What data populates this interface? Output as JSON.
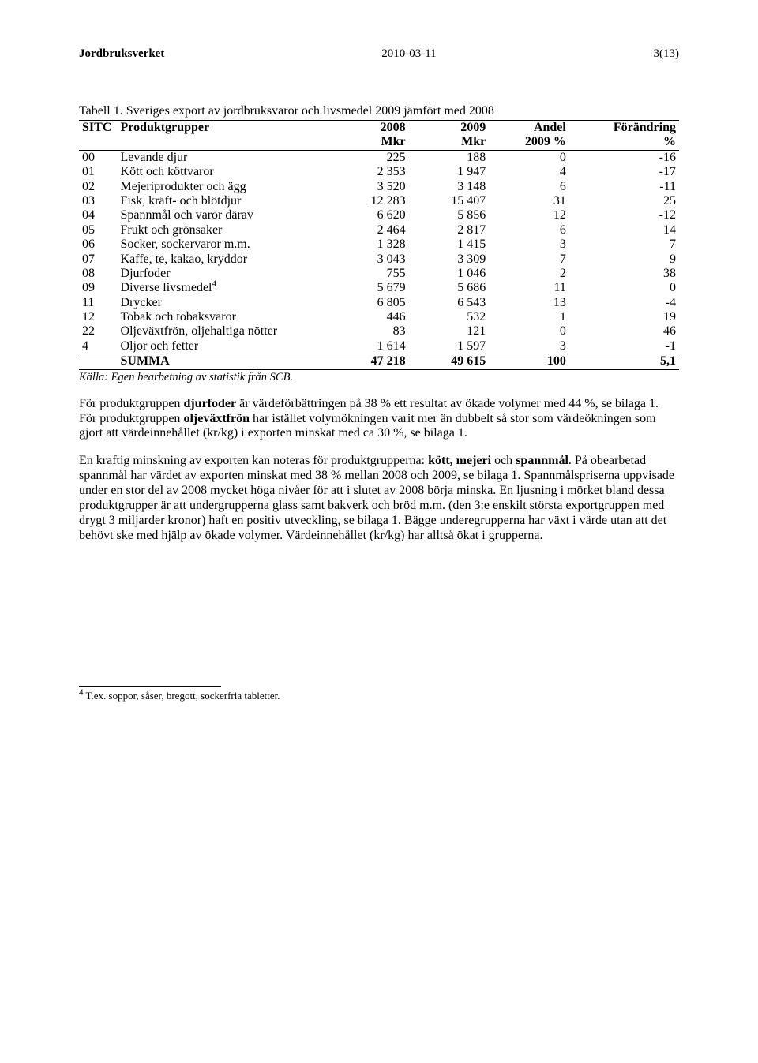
{
  "header": {
    "left": "Jordbruksverket",
    "center": "2010-03-11",
    "right": "3(13)"
  },
  "table": {
    "title": "Tabell 1. Sveriges export av jordbruksvaror och livsmedel 2009 jämfört med 2008",
    "head1": {
      "sitc": "SITC",
      "name": "Produktgrupper",
      "c1": "2008",
      "c2": "2009",
      "c3": "Andel",
      "c4": "Förändring"
    },
    "head2": {
      "c1": "Mkr",
      "c2": "Mkr",
      "c3": "2009 %",
      "c4": "%"
    },
    "rows": [
      {
        "sitc": "00",
        "name": "Levande djur",
        "v1": "225",
        "v2": "188",
        "v3": "0",
        "v4": "-16"
      },
      {
        "sitc": "01",
        "name": "Kött och köttvaror",
        "v1": "2 353",
        "v2": "1 947",
        "v3": "4",
        "v4": "-17"
      },
      {
        "sitc": "02",
        "name": "Mejeriprodukter och ägg",
        "v1": "3 520",
        "v2": "3 148",
        "v3": "6",
        "v4": "-11"
      },
      {
        "sitc": "03",
        "name": "Fisk, kräft- och blötdjur",
        "v1": "12 283",
        "v2": "15 407",
        "v3": "31",
        "v4": "25"
      },
      {
        "sitc": "04",
        "name": "Spannmål och varor därav",
        "v1": "6 620",
        "v2": "5 856",
        "v3": "12",
        "v4": "-12"
      },
      {
        "sitc": "05",
        "name": "Frukt och grönsaker",
        "v1": "2 464",
        "v2": "2 817",
        "v3": "6",
        "v4": "14"
      },
      {
        "sitc": "06",
        "name": "Socker, sockervaror m.m.",
        "v1": "1 328",
        "v2": "1 415",
        "v3": "3",
        "v4": "7"
      },
      {
        "sitc": "07",
        "name": "Kaffe, te, kakao, kryddor",
        "v1": "3 043",
        "v2": "3 309",
        "v3": "7",
        "v4": "9"
      },
      {
        "sitc": "08",
        "name": "Djurfoder",
        "v1": "755",
        "v2": "1 046",
        "v3": "2",
        "v4": "38"
      },
      {
        "sitc": "09",
        "name": "Diverse livsmedel",
        "sup": "4",
        "v1": "5 679",
        "v2": "5 686",
        "v3": "11",
        "v4": "0"
      },
      {
        "sitc": "11",
        "name": "Drycker",
        "v1": "6 805",
        "v2": "6 543",
        "v3": "13",
        "v4": "-4"
      },
      {
        "sitc": "12",
        "name": "Tobak och tobaksvaror",
        "v1": "446",
        "v2": "532",
        "v3": "1",
        "v4": "19"
      },
      {
        "sitc": "22",
        "name": "Oljeväxtfrön, oljehaltiga nötter",
        "v1": "83",
        "v2": "121",
        "v3": "0",
        "v4": "46"
      },
      {
        "sitc": "4",
        "name": "Oljor och fetter",
        "v1": "1 614",
        "v2": "1 597",
        "v3": "3",
        "v4": "-1"
      }
    ],
    "sum": {
      "name": "SUMMA",
      "v1": "47 218",
      "v2": "49 615",
      "v3": "100",
      "v4": "5,1"
    }
  },
  "source": "Källa: Egen bearbetning av statistik från SCB.",
  "para1": {
    "t1": "För produktgruppen ",
    "b1": "djurfoder",
    "t2": " är värdeförbättringen på 38 % ett resultat av ökade volymer med 44 %, se bilaga 1. För produktgruppen ",
    "b2": "oljeväxtfrön",
    "t3": " har istället volymökningen varit mer än dubbelt så stor som värdeökningen som gjort att värdeinnehållet (kr/kg) i exporten minskat med ca 30 %, se bilaga 1."
  },
  "para2": {
    "t1": "En kraftig minskning av exporten kan noteras för produktgrupperna: ",
    "b1": "kött, mejeri",
    "t2": " och ",
    "b2": "spannmål",
    "t3": ". På obearbetad spannmål har värdet av exporten minskat med 38 % mellan 2008 och 2009, se bilaga 1. Spannmålspriserna uppvisade under en stor del av 2008 mycket höga nivåer för att i slutet av 2008 börja minska. En ljusning i mörket bland dessa produktgrupper är att undergrupperna glass samt bakverk och bröd m.m. (den 3:e enskilt största exportgruppen med drygt 3 miljarder kronor) haft en positiv utveckling, se bilaga 1. Bägge underegrupperna har växt i värde utan att det behövt ske med hjälp av ökade volymer. Värdeinnehållet (kr/kg) har alltså ökat i grupperna."
  },
  "footnote": {
    "num": "4",
    "text": " T.ex. soppor, såser, bregott, sockerfria tabletter."
  }
}
